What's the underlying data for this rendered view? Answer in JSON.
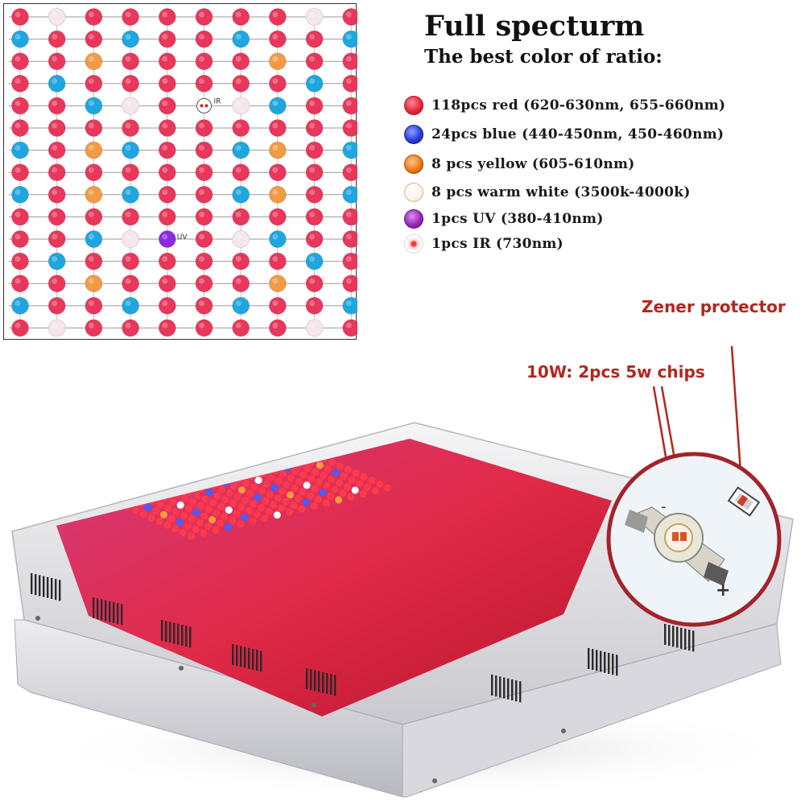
{
  "header": {
    "title": "Full specturm",
    "subtitle": "The best color of ratio:"
  },
  "legend": [
    {
      "count": "118",
      "text": "pcs red  (620-630nm, 655-660nm)",
      "color": "#e8283f",
      "icon": "red-led-icon"
    },
    {
      "count": "24",
      "text": "pcs blue  (440-450nm, 450-460nm)",
      "color": "#2a3ee0",
      "icon": "blue-led-icon"
    },
    {
      "count": "8",
      "text": " pcs yellow  (605-610nm)",
      "color": "#f07a1c",
      "icon": "yellow-led-icon"
    },
    {
      "count": "8",
      "text": " pcs warm white  (3500k-4000k)",
      "color": "#fbf3ea",
      "icon": "warm-white-led-icon"
    },
    {
      "count": "1",
      "text": "pcs UV  (380-410nm)",
      "color": "#9a2ab8",
      "icon": "uv-led-icon"
    },
    {
      "count": "1",
      "text": "pcs IR  (730nm)",
      "color": "#ffffff",
      "icon": "ir-led-icon"
    }
  ],
  "grid": {
    "ir_label": "IR",
    "uv_label": "UV",
    "colors": {
      "red": "#e8375a",
      "blue": "#1fa6df",
      "yellow": "#f29a45",
      "white": "#f4e6ea",
      "uv": "#8a2be2"
    }
  },
  "callouts": {
    "zener": "Zener protector",
    "chips": "10W: 2pcs 5w chips",
    "accent": "#b3261e"
  },
  "chip_markings": {
    "minus": "-",
    "plus": "+"
  }
}
